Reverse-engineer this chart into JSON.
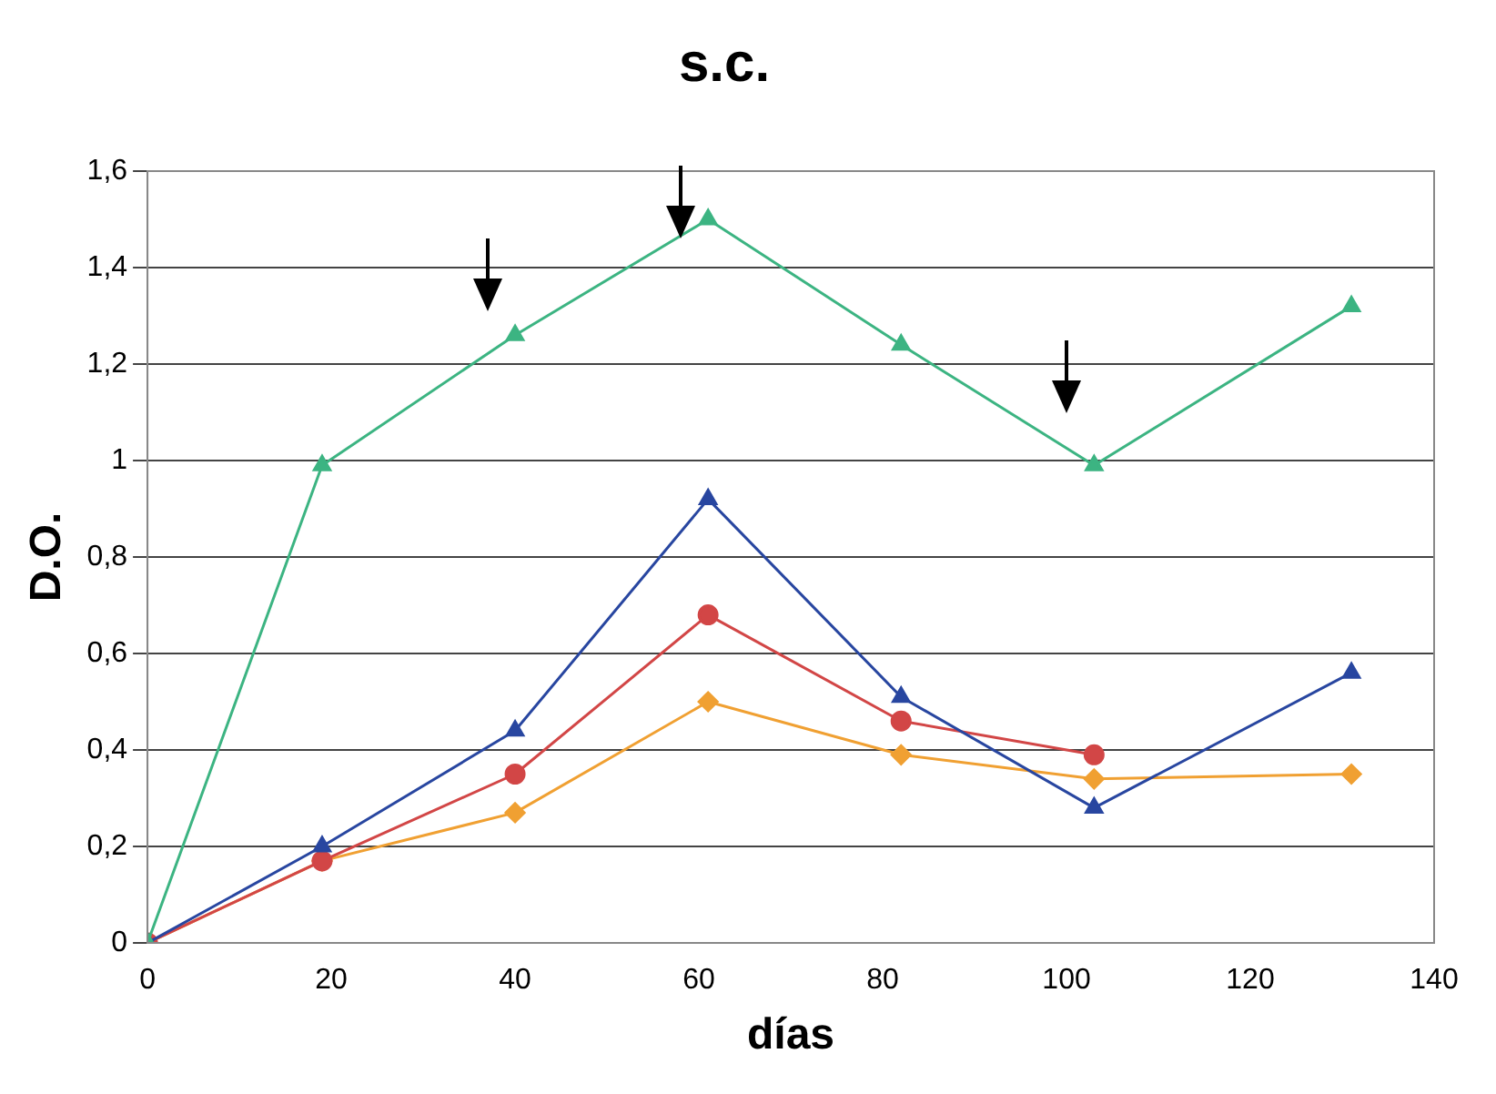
{
  "chart_data": {
    "type": "line",
    "title": "s.c.",
    "xlabel": "días",
    "ylabel": "D.O.",
    "x": [
      0,
      19,
      40,
      61,
      82,
      103,
      131
    ],
    "series": [
      {
        "color": "#3cb482",
        "marker": "triangle",
        "values": [
          0,
          0.99,
          1.26,
          1.5,
          1.24,
          0.99,
          1.32
        ]
      },
      {
        "color": "#2846a0",
        "marker": "triangle",
        "values": [
          0,
          0.2,
          0.44,
          0.92,
          0.51,
          0.28,
          0.56
        ]
      },
      {
        "color": "#d24646",
        "marker": "circle",
        "values": [
          0,
          0.17,
          0.35,
          0.68,
          0.46,
          0.39,
          null
        ]
      },
      {
        "color": "#f0a032",
        "marker": "diamond",
        "values": [
          0,
          0.17,
          0.27,
          0.5,
          0.39,
          0.34,
          0.35
        ]
      }
    ],
    "xlim": [
      0,
      140
    ],
    "xticks": [
      0,
      20,
      40,
      60,
      80,
      100,
      120,
      140
    ],
    "ylim": [
      0,
      1.6
    ],
    "yticks": [
      0,
      {
        "value": 0.2,
        "label": "0,2"
      },
      {
        "value": 0.4,
        "label": "0,4"
      },
      {
        "value": 0.6,
        "label": "0,6"
      },
      {
        "value": 0.8,
        "label": "0,8"
      },
      1,
      {
        "value": 1.2,
        "label": "1,2"
      },
      {
        "value": 1.4,
        "label": "1,4"
      },
      {
        "value": 1.6,
        "label": "1,6"
      }
    ],
    "grid": "y",
    "legend": false,
    "line_style": "solid"
  }
}
